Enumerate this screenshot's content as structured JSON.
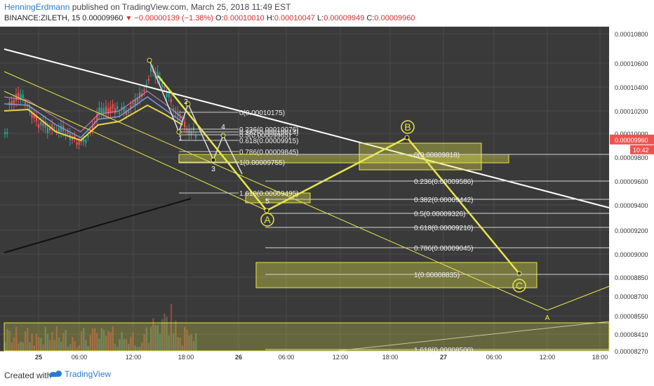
{
  "header": {
    "author": "HenningErdmann",
    "published_text": "published on TradingView.com, March 25, 2018 11:49 EST",
    "symbol": "BINANCE:ZILETH, 15",
    "last": "0.00009960",
    "change": "−0.00000139 (−1.38%)",
    "o_label": "O:",
    "o_value": "0.00010010",
    "h_label": "H:",
    "h_value": "0.00010047",
    "l_label": "L:",
    "l_value": "0.00009949",
    "c_label": "C:",
    "c_value": "0.00009960"
  },
  "footer": {
    "created_with": "Created with",
    "brand": "TradingView"
  },
  "colors": {
    "bg": "#3a3a3a",
    "grid": "#4a4a4a",
    "yellow": "#e8e84a",
    "white": "#ffffff",
    "up": "#26a69a",
    "down": "#ef5350",
    "price_tag": "#ef5350"
  },
  "chart_data": {
    "type": "candlestick",
    "price_axis_ticks": [
      "0.00010800",
      "0.00010600",
      "0.00010400",
      "0.00010200",
      "0.00010000",
      "0.00009800",
      "0.00009600",
      "0.00009400",
      "0.00009200",
      "0.00009000",
      "0.00008850",
      "0.00008700",
      "0.00008550",
      "0.00008410",
      "0.00008270"
    ],
    "time_axis_ticks": [
      "25",
      "06:00",
      "12:00",
      "18:00",
      "26",
      "06:00",
      "12:00",
      "18:00",
      "27",
      "06:00",
      "12:00",
      "18:00"
    ],
    "current_price": "0.00009960",
    "countdown": "10:42",
    "fib_upper": [
      {
        "label": "0(0.00010175)",
        "price": 0.00010175
      },
      {
        "label": "0.236(0.00010076)",
        "price": 0.00010076
      },
      {
        "label": "0.382(0.00010014)",
        "price": 0.00010014
      },
      {
        "label": "0.5(0.00009965)",
        "price": 9.965e-05
      },
      {
        "label": "0.618(0.00009915)",
        "price": 9.915e-05
      },
      {
        "label": "0.786(0.00009845)",
        "price": 9.845e-05
      },
      {
        "label": "1(0.00009755)",
        "price": 9.755e-05
      },
      {
        "label": "1.618(0.00009495)",
        "price": 9.495e-05
      }
    ],
    "fib_lower": [
      {
        "label": "0(0.00009818)",
        "price": 9.818e-05
      },
      {
        "label": "0.236(0.00009586)",
        "price": 9.586e-05
      },
      {
        "label": "0.382(0.00009442)",
        "price": 9.442e-05
      },
      {
        "label": "0.5(0.00009326)",
        "price": 9.326e-05
      },
      {
        "label": "0.618(0.00009210)",
        "price": 9.21e-05
      },
      {
        "label": "0.786(0.00009045)",
        "price": 9.045e-05
      },
      {
        "label": "1(0.00008835)",
        "price": 8.835e-05
      },
      {
        "label": "1.618(0.00008500)",
        "price": 8.5e-05
      }
    ],
    "wave_labels": [
      "1",
      "2",
      "3",
      "4",
      "5",
      "A",
      "B",
      "C",
      "A"
    ]
  }
}
